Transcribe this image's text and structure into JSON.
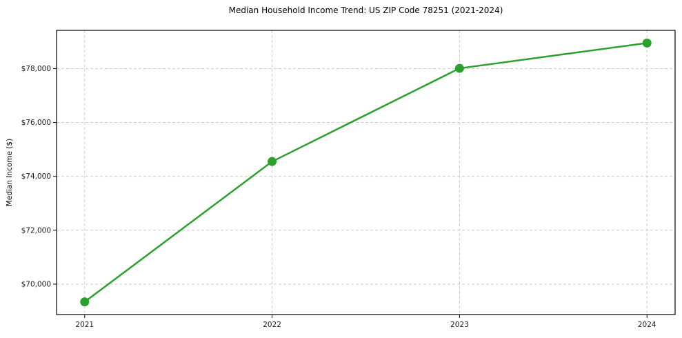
{
  "chart_data": {
    "type": "line",
    "title": "Median Household Income Trend: US ZIP Code 78251 (2021-2024)",
    "ylabel": "Median Income ($)",
    "xlabel": "",
    "x": [
      2021,
      2022,
      2023,
      2024
    ],
    "x_tick_labels": [
      "2021",
      "2022",
      "2023",
      "2024"
    ],
    "values": [
      69340,
      74550,
      78010,
      78950
    ],
    "y_ticks": [
      70000,
      72000,
      74000,
      76000,
      78000
    ],
    "y_tick_labels": [
      "$70,000",
      "$72,000",
      "$74,000",
      "$76,000",
      "$78,000"
    ],
    "xlim": [
      2020.85,
      2024.15
    ],
    "ylim": [
      68870,
      79420
    ],
    "grid": true,
    "grid_style": "dashed",
    "legend": "none",
    "colors": {
      "line": "#2ca02c",
      "marker": "#2ca02c",
      "grid": "#cccccc",
      "axis": "#000000",
      "text": "#1a1a1a",
      "background": "#ffffff"
    }
  }
}
